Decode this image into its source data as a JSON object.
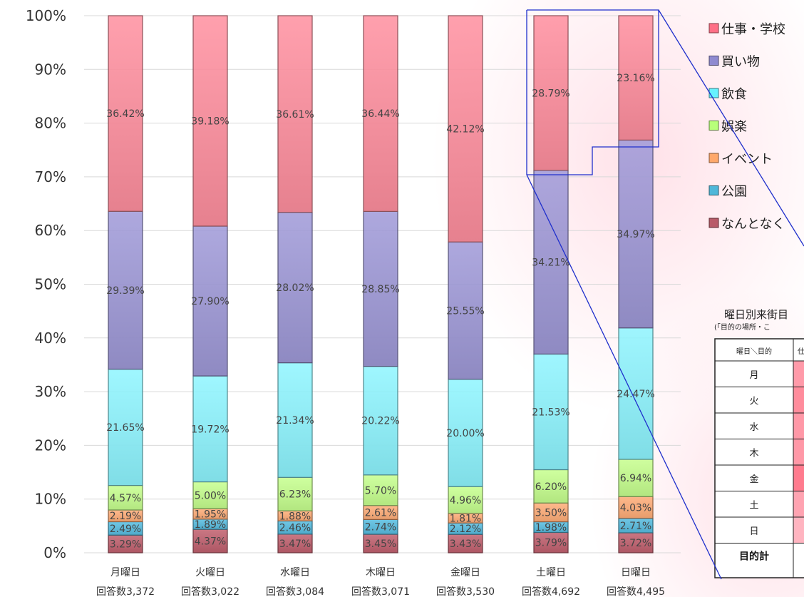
{
  "chart_data": {
    "type": "bar",
    "stacked": true,
    "percent": true,
    "categories": [
      "月曜日",
      "火曜日",
      "水曜日",
      "木曜日",
      "金曜日",
      "土曜日",
      "日曜日"
    ],
    "sub_labels": [
      "回答数3,372",
      "回答数3,022",
      "回答数3,084",
      "回答数3,071",
      "回答数3,530",
      "回答数4,692",
      "回答数4,495"
    ],
    "yticks": [
      "0%",
      "10%",
      "20%",
      "30%",
      "40%",
      "50%",
      "60%",
      "70%",
      "80%",
      "90%",
      "100%"
    ],
    "ylim": [
      0,
      100
    ],
    "grid": true,
    "legend_position": "right",
    "series": [
      {
        "name": "なんとなく",
        "color": "#c0606e",
        "values": [
          3.29,
          4.37,
          3.47,
          3.45,
          3.43,
          3.79,
          3.72
        ],
        "labels": [
          "3.29%",
          "4.37%",
          "3.47%",
          "3.45%",
          "3.43%",
          "3.79%",
          "3.72%"
        ]
      },
      {
        "name": "公園",
        "color": "#57bde0",
        "values": [
          2.49,
          1.89,
          2.46,
          2.74,
          2.12,
          1.98,
          2.71
        ],
        "labels": [
          "2.49%",
          "1.89%",
          "2.46%",
          "2.74%",
          "2.12%",
          "1.98%",
          "2.71%"
        ]
      },
      {
        "name": "イベント",
        "color": "#ffad78",
        "values": [
          2.19,
          1.95,
          1.88,
          2.61,
          1.81,
          3.5,
          4.03
        ],
        "labels": [
          "2.19%",
          "1.95%",
          "1.88%",
          "2.61%",
          "1.81%",
          "3.50%",
          "4.03%"
        ]
      },
      {
        "name": "娯楽",
        "color": "#c6ff8e",
        "values": [
          4.57,
          5.0,
          6.23,
          5.7,
          4.96,
          6.2,
          6.94
        ],
        "labels": [
          "4.57%",
          "5.00%",
          "6.23%",
          "5.70%",
          "4.96%",
          "6.20%",
          "6.94%"
        ]
      },
      {
        "name": "飲食",
        "color": "#8ef5ff",
        "values": [
          21.65,
          19.72,
          21.34,
          20.22,
          20.0,
          21.53,
          24.47
        ],
        "labels": [
          "21.65%",
          "19.72%",
          "21.34%",
          "20.22%",
          "20.00%",
          "21.53%",
          "24.47%"
        ]
      },
      {
        "name": "買い物",
        "color": "#9f99d8",
        "values": [
          29.39,
          27.9,
          28.02,
          28.85,
          25.55,
          34.21,
          34.97
        ],
        "labels": [
          "29.39%",
          "27.90%",
          "28.02%",
          "28.85%",
          "25.55%",
          "34.21%",
          "34.97%"
        ]
      },
      {
        "name": "仕事・学校",
        "color": "#ff8f9f",
        "values": [
          36.42,
          39.18,
          36.61,
          36.44,
          42.12,
          28.79,
          23.16
        ],
        "labels": [
          "36.42%",
          "39.18%",
          "36.61%",
          "36.44%",
          "42.12%",
          "28.79%",
          "23.16%"
        ]
      }
    ]
  },
  "legend": {
    "items": [
      "仕事・学校",
      "買い物",
      "飲食",
      "娯楽",
      "イベント",
      "公園",
      "なんとなく"
    ],
    "colors": [
      "#ff6f86",
      "#8f8ad0",
      "#66f2ff",
      "#b8ff7a",
      "#ffa86a",
      "#4fb7d9",
      "#b85a68"
    ]
  },
  "table": {
    "title": "曜日別来街目",
    "subtitle": "(「目的の場所・こ",
    "header": [
      "曜日＼目的",
      "仕"
    ],
    "rows": [
      "月",
      "火",
      "水",
      "木",
      "金",
      "土",
      "日"
    ],
    "total_label": "目的計",
    "row_colors": [
      "#ff9aa9",
      "#ff8c9c",
      "#ff98a7",
      "#ff98a7",
      "#ff7b8e",
      "#ffa3b1",
      "#ffb4c0"
    ]
  },
  "colors": {
    "accent_line": "#1f2fcc",
    "grid": "#d9d9d9"
  }
}
